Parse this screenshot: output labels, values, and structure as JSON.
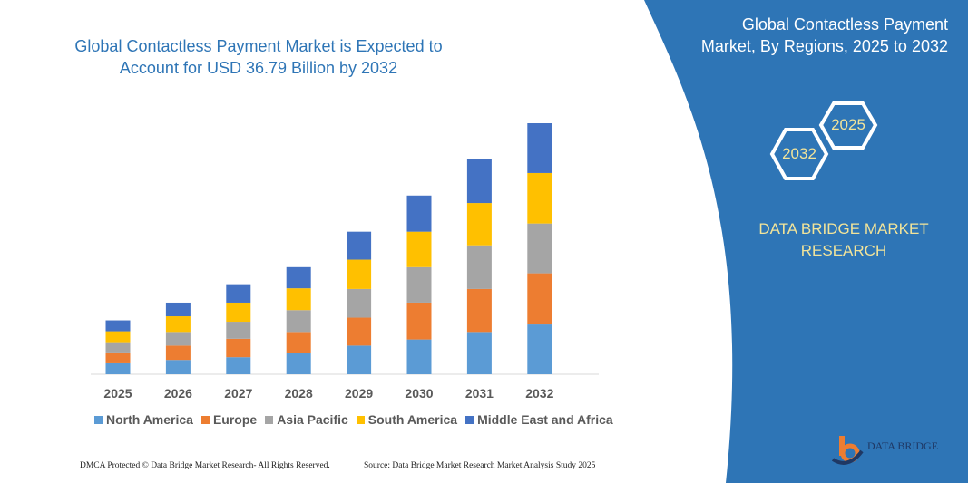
{
  "title": "Global Contactless Payment Market is Expected to Account for USD 36.79 Billion by 2032",
  "side_panel": {
    "title": "Global Contactless Payment Market, By Regions, 2025 to 2032",
    "hex_start": "2025",
    "hex_end": "2032",
    "brand": "DATA BRIDGE MARKET RESEARCH",
    "logo_text": "DATA BRIDGE",
    "color": "#2E75B6"
  },
  "footer": {
    "left": "DMCA Protected © Data Bridge Market Research- All Rights Reserved.",
    "right": "Source: Data Bridge Market Research Market Analysis Study 2025"
  },
  "chart_data": {
    "type": "bar",
    "stacked": true,
    "categories": [
      "2025",
      "2026",
      "2027",
      "2028",
      "2029",
      "2030",
      "2031",
      "2032"
    ],
    "series": [
      {
        "name": "North America",
        "color": "#5B9BD5",
        "values": [
          1.6,
          2.1,
          2.5,
          3.1,
          4.2,
          5.1,
          6.2,
          7.3
        ]
      },
      {
        "name": "Europe",
        "color": "#ED7D31",
        "values": [
          1.6,
          2.1,
          2.7,
          3.1,
          4.1,
          5.4,
          6.3,
          7.5
        ]
      },
      {
        "name": "Asia Pacific",
        "color": "#A5A5A5",
        "values": [
          1.5,
          2.0,
          2.5,
          3.2,
          4.2,
          5.2,
          6.4,
          7.3
        ]
      },
      {
        "name": "South America",
        "color": "#FFC000",
        "values": [
          1.6,
          2.3,
          2.8,
          3.2,
          4.3,
          5.2,
          6.2,
          7.4
        ]
      },
      {
        "name": "Middle East and Africa",
        "color": "#4472C4",
        "values": [
          1.6,
          2.0,
          2.7,
          3.1,
          4.1,
          5.3,
          6.4,
          7.3
        ]
      }
    ],
    "xlabel": "",
    "ylabel": "",
    "legend": "bottom",
    "grid": false
  }
}
